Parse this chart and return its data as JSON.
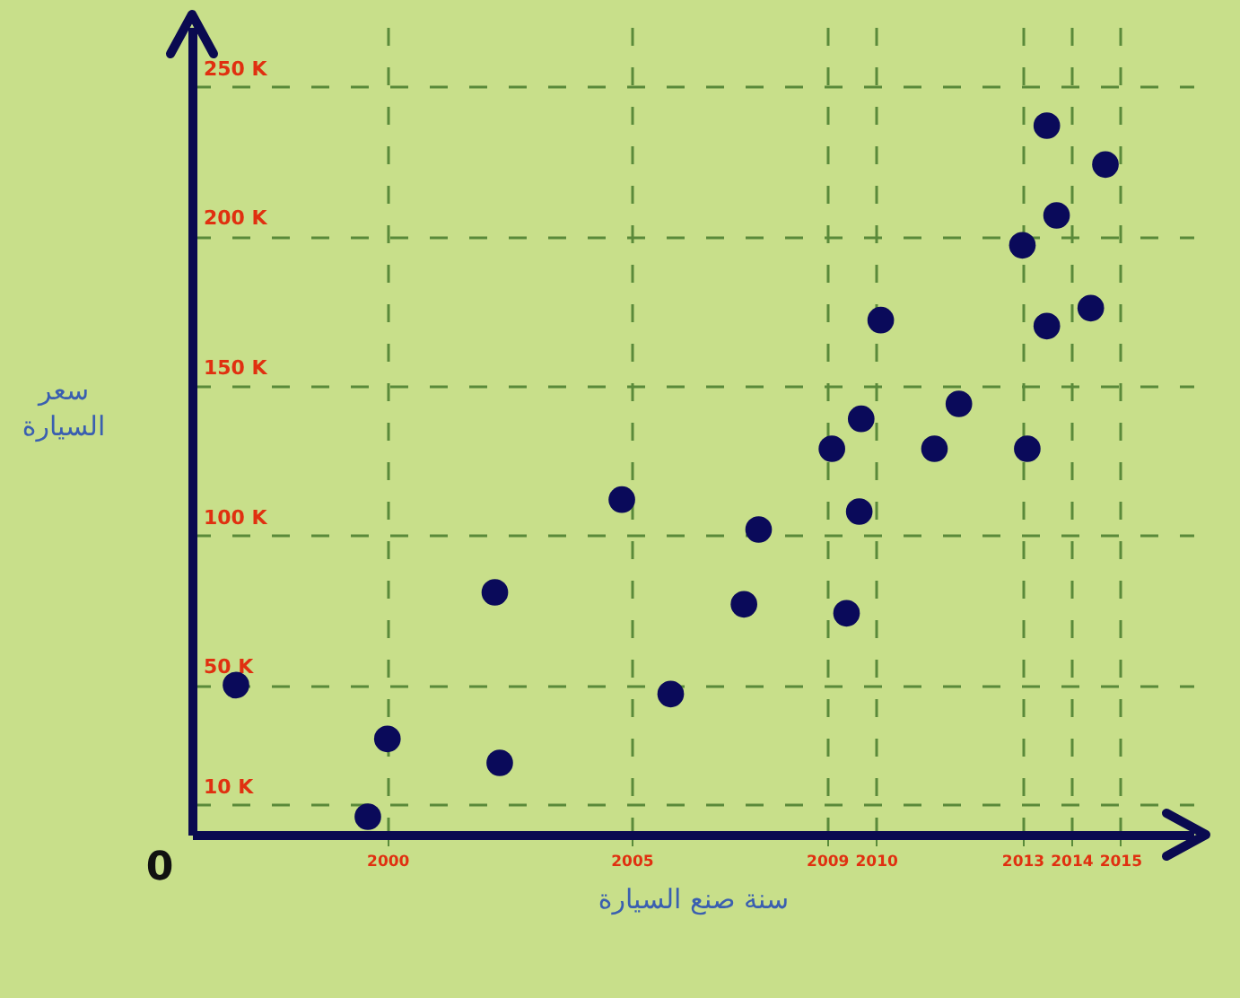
{
  "chart_data": {
    "type": "scatter",
    "xlabel": "سنة صنع السيارة",
    "ylabel": "سعر\nالسيارة",
    "annotations": [
      "0"
    ],
    "xlim": [
      1996,
      2016.5
    ],
    "ylim": [
      0,
      270000
    ],
    "xticks": [
      2000,
      2005,
      2009,
      2010,
      2013,
      2014,
      2015
    ],
    "yticks": [
      {
        "value": 10000,
        "label": "10 K"
      },
      {
        "value": 50000,
        "label": "50 K"
      },
      {
        "value": 100000,
        "label": "100 K"
      },
      {
        "value": 150000,
        "label": "150 K"
      },
      {
        "value": 200000,
        "label": "200 K"
      },
      {
        "value": 250000,
        "label": "250 K"
      }
    ],
    "x": [
      1996.9,
      2000.0,
      1999.6,
      2002.3,
      2002.2,
      2004.8,
      2005.8,
      2007.3,
      2007.6,
      2009.4,
      2009.1,
      2009.66,
      2009.7,
      2010.1,
      2011.2,
      2011.7,
      2013.1,
      2013.0,
      2013.5,
      2013.5,
      2013.7,
      2014.4,
      2014.7
    ],
    "series": [
      {
        "color": "#0a0a5a",
        "values": [
          50000,
          32000,
          6000,
          24000,
          81000,
          112000,
          47000,
          77000,
          102000,
          74000,
          129000,
          108000,
          139000,
          172000,
          129000,
          144000,
          129000,
          197000,
          170000,
          237000,
          207000,
          176000,
          224000
        ]
      }
    ],
    "grid": true,
    "marker": "circle"
  }
}
